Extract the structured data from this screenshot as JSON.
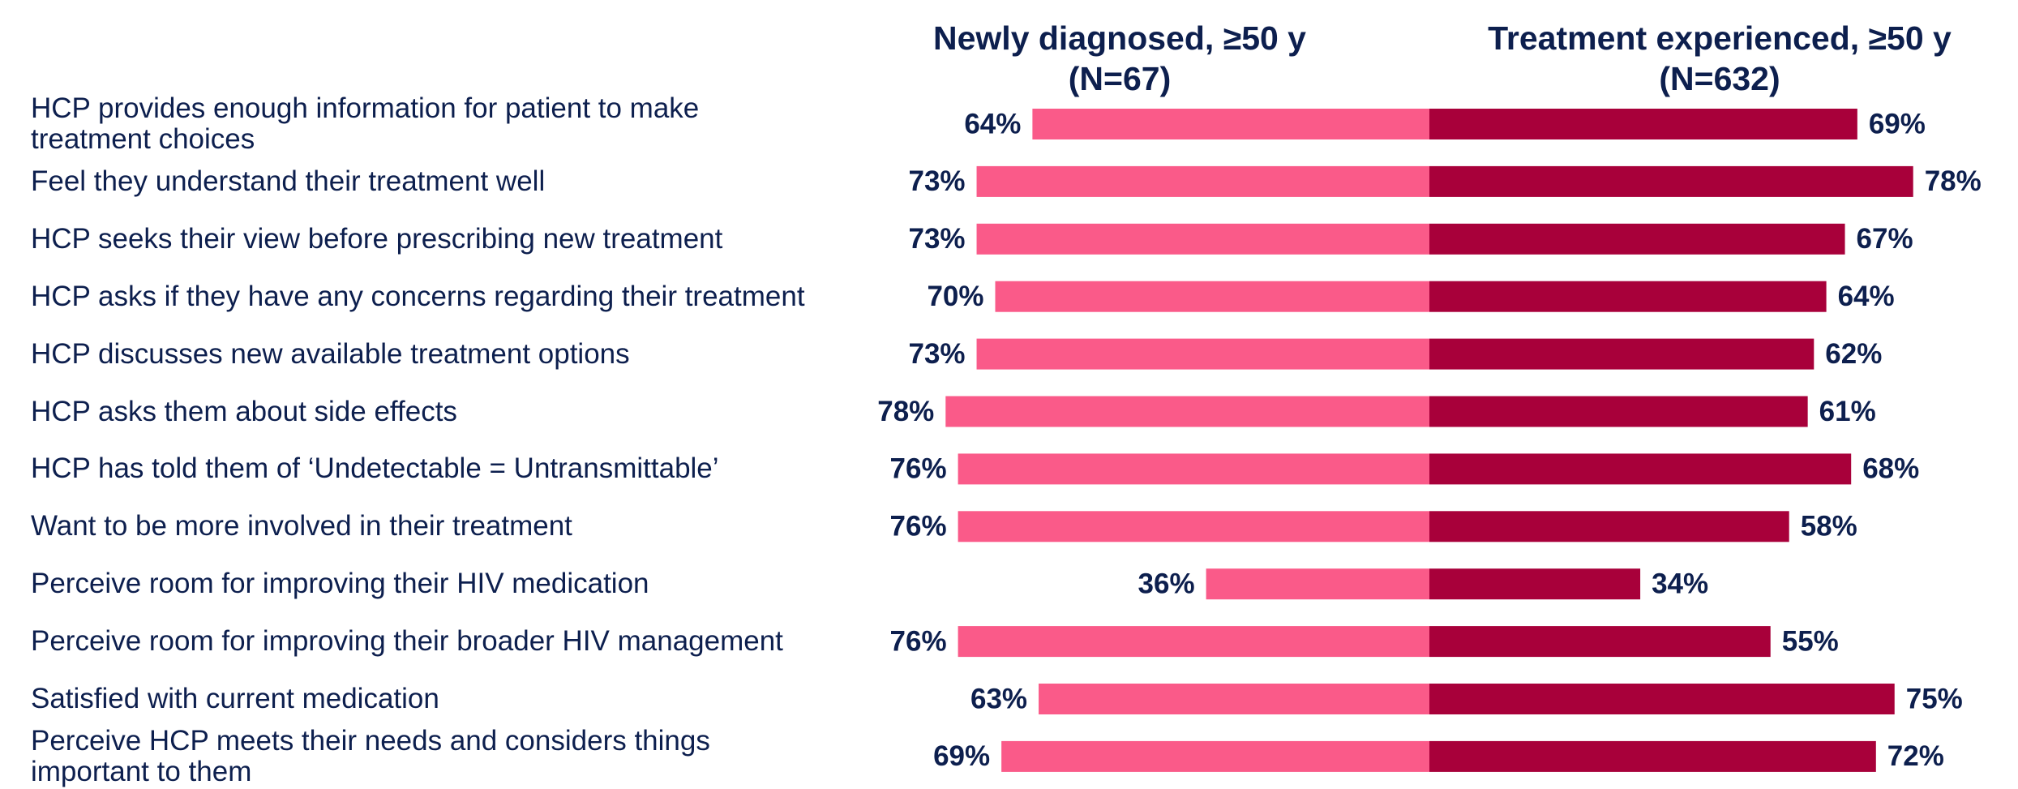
{
  "chart_data": {
    "type": "bar",
    "categories": [
      "HCP provides enough information for patient to make\ntreatment choices",
      "Feel they understand their treatment well",
      "HCP seeks their view before prescribing new treatment",
      "HCP asks if they have any concerns regarding their treatment",
      "HCP discusses new available treatment options",
      "HCP asks them about side effects",
      "HCP has told them of ‘Undetectable = Untransmittable’",
      "Want to be more involved in their treatment",
      "Perceive room for improving their HIV medication",
      "Perceive room for improving their broader HIV management",
      "Satisfied with current medication",
      "Perceive HCP meets their needs and considers things\nimportant to them"
    ],
    "series": [
      {
        "name": "Newly diagnosed, ≥50 y\n(N=67)",
        "color": "#fa5a89",
        "values": [
          64,
          73,
          73,
          70,
          73,
          78,
          76,
          76,
          36,
          76,
          63,
          69
        ],
        "value_labels": [
          "64%",
          "73%",
          "73%",
          "70%",
          "73%",
          "78%",
          "76%",
          "76%",
          "36%",
          "76%",
          "63%",
          "69%"
        ]
      },
      {
        "name": "Treatment experienced, ≥50 y\n(N=632)",
        "color": "#a8003a",
        "values": [
          69,
          78,
          67,
          64,
          62,
          61,
          68,
          58,
          34,
          55,
          75,
          72
        ],
        "value_labels": [
          "69%",
          "78%",
          "67%",
          "64%",
          "62%",
          "61%",
          "68%",
          "58%",
          "34%",
          "55%",
          "75%",
          "72%"
        ]
      }
    ]
  }
}
